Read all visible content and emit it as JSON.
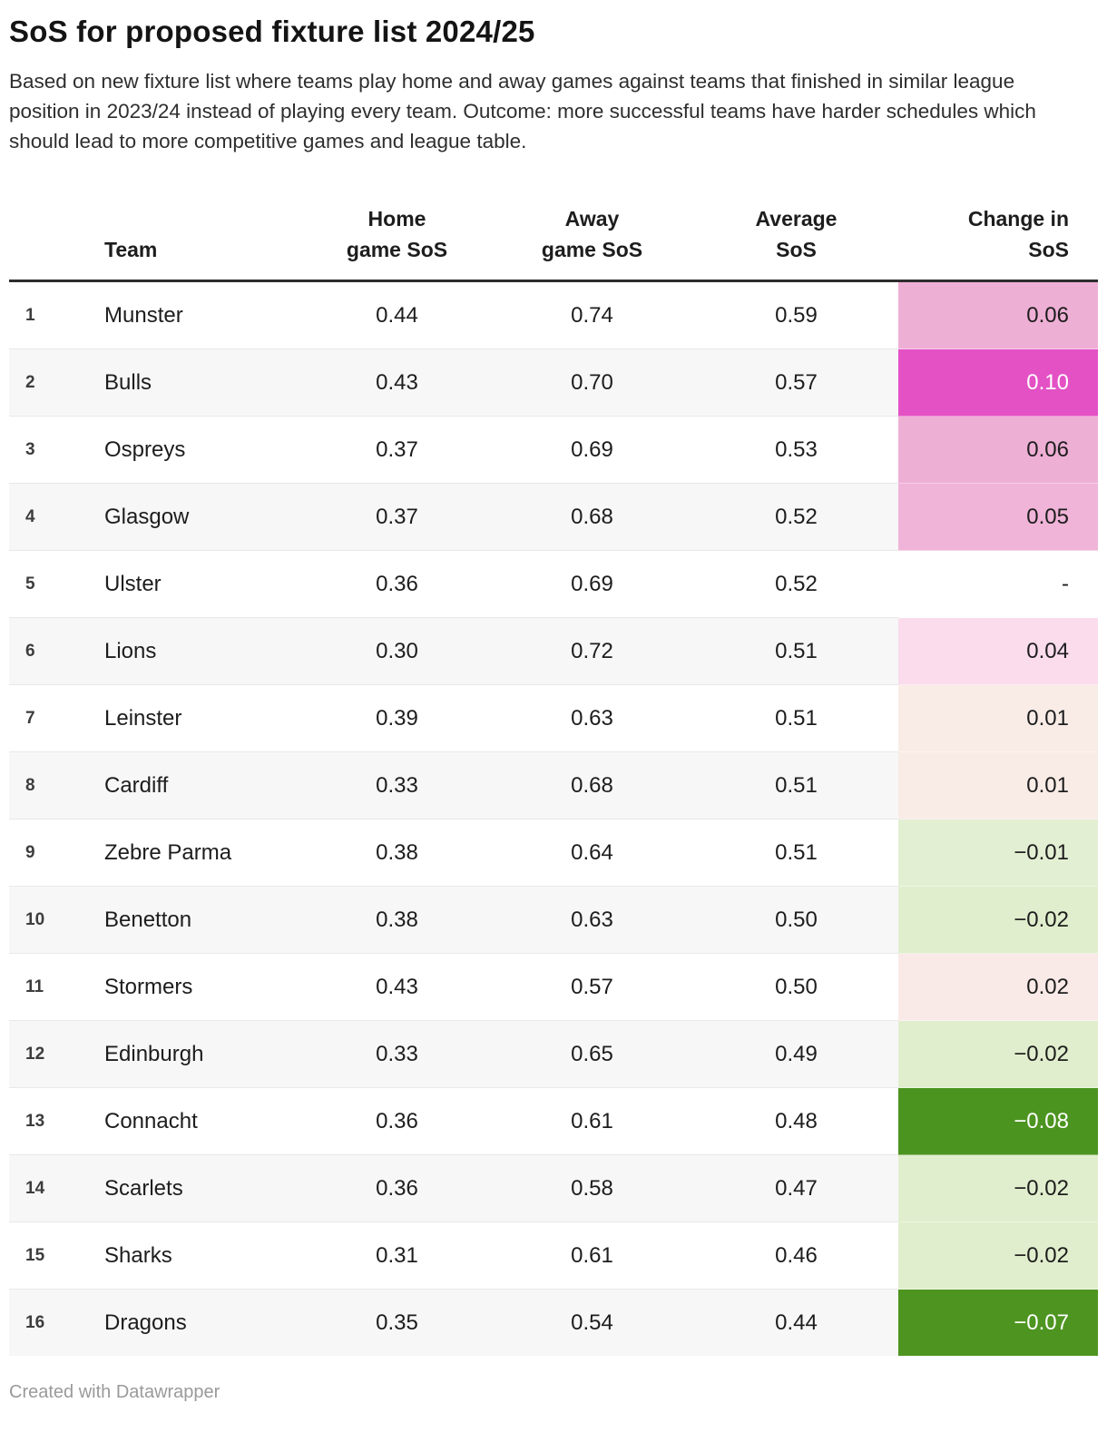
{
  "header": {
    "title": "SoS for proposed fixture list 2024/25",
    "subtitle": "Based on new fixture list where teams play home and away games against teams that finished in similar league position in 2023/24 instead of playing every team. Outcome: more successful teams have harder schedules which should lead to more competitive games and league table."
  },
  "chart_data": {
    "type": "table",
    "title": "SoS for proposed fixture list 2024/25",
    "columns": [
      "Team",
      "Home\ngame SoS",
      "Away\ngame SoS",
      "Average\nSoS",
      "Change in\nSoS"
    ],
    "legend_position": "none",
    "grid": "row-stripes",
    "rows": [
      {
        "rank": "1",
        "team": "Munster",
        "home": "0.44",
        "away": "0.74",
        "avg": "0.59",
        "change": "0.06",
        "change_bg": "#eeafd5",
        "change_fg": "#1d1d1d"
      },
      {
        "rank": "2",
        "team": "Bulls",
        "home": "0.43",
        "away": "0.70",
        "avg": "0.57",
        "change": "0.10",
        "change_bg": "#e351c5",
        "change_fg": "#ffffff"
      },
      {
        "rank": "3",
        "team": "Ospreys",
        "home": "0.37",
        "away": "0.69",
        "avg": "0.53",
        "change": "0.06",
        "change_bg": "#eeafd5",
        "change_fg": "#1d1d1d"
      },
      {
        "rank": "4",
        "team": "Glasgow",
        "home": "0.37",
        "away": "0.68",
        "avg": "0.52",
        "change": "0.05",
        "change_bg": "#f0b4d8",
        "change_fg": "#1d1d1d"
      },
      {
        "rank": "5",
        "team": "Ulster",
        "home": "0.36",
        "away": "0.69",
        "avg": "0.52",
        "change": "-",
        "change_bg": "",
        "change_fg": "#1d1d1d"
      },
      {
        "rank": "6",
        "team": "Lions",
        "home": "0.30",
        "away": "0.72",
        "avg": "0.51",
        "change": "0.04",
        "change_bg": "#fadcec",
        "change_fg": "#1d1d1d"
      },
      {
        "rank": "7",
        "team": "Leinster",
        "home": "0.39",
        "away": "0.63",
        "avg": "0.51",
        "change": "0.01",
        "change_bg": "#f9ece7",
        "change_fg": "#1d1d1d"
      },
      {
        "rank": "8",
        "team": "Cardiff",
        "home": "0.33",
        "away": "0.68",
        "avg": "0.51",
        "change": "0.01",
        "change_bg": "#f9ece7",
        "change_fg": "#1d1d1d"
      },
      {
        "rank": "9",
        "team": "Zebre Parma",
        "home": "0.38",
        "away": "0.64",
        "avg": "0.51",
        "change": "−0.01",
        "change_bg": "#e3efd3",
        "change_fg": "#1d1d1d"
      },
      {
        "rank": "10",
        "team": "Benetton",
        "home": "0.38",
        "away": "0.63",
        "avg": "0.50",
        "change": "−0.02",
        "change_bg": "#e1eecd",
        "change_fg": "#1d1d1d"
      },
      {
        "rank": "11",
        "team": "Stormers",
        "home": "0.43",
        "away": "0.57",
        "avg": "0.50",
        "change": "0.02",
        "change_bg": "#f9eae8",
        "change_fg": "#1d1d1d"
      },
      {
        "rank": "12",
        "team": "Edinburgh",
        "home": "0.33",
        "away": "0.65",
        "avg": "0.49",
        "change": "−0.02",
        "change_bg": "#e1eecd",
        "change_fg": "#1d1d1d"
      },
      {
        "rank": "13",
        "team": "Connacht",
        "home": "0.36",
        "away": "0.61",
        "avg": "0.48",
        "change": "−0.08",
        "change_bg": "#4c9420",
        "change_fg": "#ffffff"
      },
      {
        "rank": "14",
        "team": "Scarlets",
        "home": "0.36",
        "away": "0.58",
        "avg": "0.47",
        "change": "−0.02",
        "change_bg": "#e1eecd",
        "change_fg": "#1d1d1d"
      },
      {
        "rank": "15",
        "team": "Sharks",
        "home": "0.31",
        "away": "0.61",
        "avg": "0.46",
        "change": "−0.02",
        "change_bg": "#e1eecd",
        "change_fg": "#1d1d1d"
      },
      {
        "rank": "16",
        "team": "Dragons",
        "home": "0.35",
        "away": "0.54",
        "avg": "0.44",
        "change": "−0.07",
        "change_bg": "#4d9520",
        "change_fg": "#ffffff"
      }
    ]
  },
  "colors": {
    "positive_strong": "#e351c5",
    "positive_mid": "#eeafd5",
    "positive_weak": "#f9ece7",
    "negative_weak": "#e1eecd",
    "negative_strong": "#4c9420",
    "row_stripe": "#f7f7f7",
    "header_rule": "#2d2d2d"
  },
  "footer": {
    "attribution": "Created with Datawrapper"
  }
}
